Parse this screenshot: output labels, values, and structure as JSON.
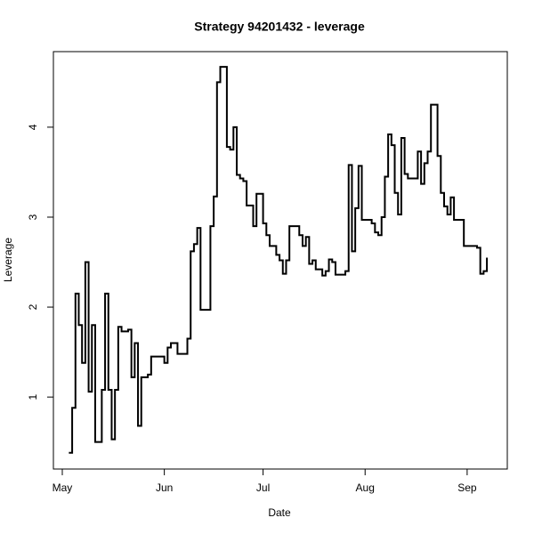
{
  "chart_data": {
    "type": "step",
    "title": "Strategy 94201432 - leverage",
    "xlabel": "Date",
    "ylabel": "Leverage",
    "x": [
      2,
      3,
      4,
      5,
      6,
      7,
      8,
      9,
      10,
      12,
      13,
      14,
      15,
      16,
      17,
      18,
      20,
      21,
      22,
      23,
      24,
      26,
      27,
      31,
      32,
      33,
      35,
      38,
      39,
      40,
      41,
      42,
      45,
      46,
      47,
      48,
      50,
      51,
      52,
      53,
      54,
      55,
      56,
      58,
      59,
      61,
      62,
      63,
      65,
      66,
      67,
      68,
      69,
      72,
      73,
      74,
      75,
      76,
      77,
      79,
      80,
      81,
      82,
      83,
      86,
      87,
      88,
      89,
      90,
      91,
      94,
      95,
      96,
      97,
      98,
      99,
      100,
      101,
      102,
      103,
      104,
      105,
      108,
      109,
      110,
      111,
      112,
      114,
      115,
      116,
      117,
      118,
      119,
      122,
      126,
      127,
      128,
      129
    ],
    "values": [
      0.38,
      0.88,
      2.15,
      1.8,
      1.38,
      2.5,
      1.06,
      1.8,
      0.5,
      1.08,
      2.15,
      1.08,
      0.53,
      1.08,
      1.78,
      1.73,
      1.75,
      1.22,
      1.6,
      0.68,
      1.22,
      1.25,
      1.45,
      1.38,
      1.55,
      1.6,
      1.48,
      1.65,
      2.62,
      2.7,
      2.88,
      1.97,
      2.9,
      3.23,
      4.5,
      4.67,
      3.78,
      3.75,
      4.0,
      3.47,
      3.43,
      3.4,
      3.13,
      2.9,
      3.26,
      2.93,
      2.8,
      2.68,
      2.58,
      2.52,
      2.37,
      2.52,
      2.9,
      2.8,
      2.68,
      2.78,
      2.48,
      2.52,
      2.42,
      2.35,
      2.4,
      2.53,
      2.5,
      2.36,
      2.4,
      3.58,
      2.62,
      3.1,
      3.57,
      2.97,
      2.93,
      2.83,
      2.8,
      3.0,
      3.45,
      3.92,
      3.8,
      3.27,
      3.03,
      3.88,
      3.48,
      3.43,
      3.73,
      3.37,
      3.6,
      3.73,
      4.25,
      3.68,
      3.27,
      3.12,
      3.03,
      3.22,
      2.97,
      2.68,
      2.66,
      2.37,
      2.4,
      2.55
    ],
    "color": "#000000",
    "xlim": [
      -2.7,
      135.2
    ],
    "xticks": [
      {
        "value": 0,
        "label": "May"
      },
      {
        "value": 31,
        "label": "Jun"
      },
      {
        "value": 61,
        "label": "Jul"
      },
      {
        "value": 92,
        "label": "Aug"
      },
      {
        "value": 123,
        "label": "Sep"
      }
    ],
    "ylim": [
      0.2,
      4.84
    ],
    "yticks": [
      1,
      2,
      3,
      4
    ]
  }
}
